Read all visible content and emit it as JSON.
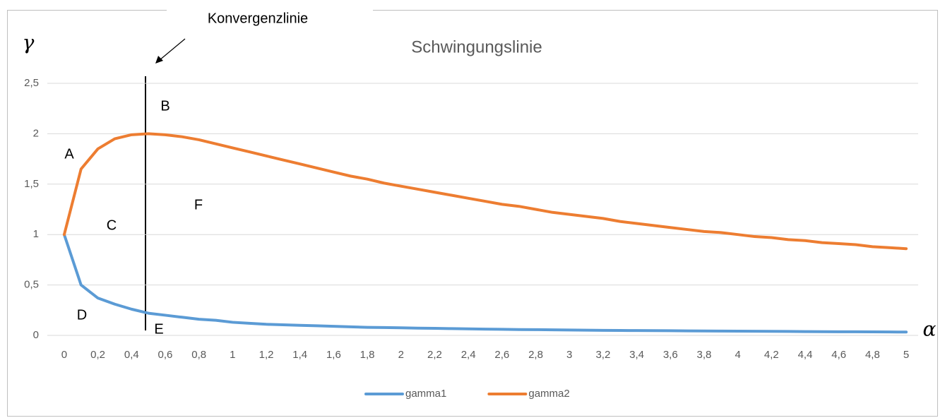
{
  "chart_data": {
    "type": "line",
    "title": "Schwingungslinie",
    "y_label": "γ",
    "x_label": "α",
    "annotations": [
      "Konvergenzlinie",
      "A",
      "B",
      "C",
      "D",
      "E",
      "F"
    ],
    "categories": [
      "0",
      null,
      "0,2",
      null,
      "0,4",
      null,
      "0,6",
      null,
      "0,8",
      null,
      "1",
      null,
      "1,2",
      null,
      "1,4",
      null,
      "1,6",
      null,
      "1,8",
      null,
      "2",
      null,
      "2,2",
      null,
      "2,4",
      null,
      "2,6",
      null,
      "2,8",
      null,
      "3",
      null,
      "3,2",
      null,
      "3,4",
      null,
      "3,6",
      null,
      "3,8",
      null,
      "4",
      null,
      "4,2",
      null,
      "4,4",
      null,
      "4,6",
      null,
      "4,8",
      null,
      "5"
    ],
    "series": [
      {
        "name": "gamma1",
        "color": "#5b9bd5",
        "values": [
          1,
          0.5,
          0.37,
          0.31,
          0.26,
          0.22,
          0.2,
          0.18,
          0.16,
          0.15,
          0.13,
          0.12,
          0.11,
          0.105,
          0.1,
          0.095,
          0.09,
          0.085,
          0.08,
          0.078,
          0.075,
          0.072,
          0.07,
          0.067,
          0.065,
          0.062,
          0.06,
          0.058,
          0.057,
          0.055,
          0.053,
          0.052,
          0.05,
          0.049,
          0.048,
          0.047,
          0.046,
          0.045,
          0.044,
          0.043,
          0.042,
          0.041,
          0.04,
          0.039,
          0.038,
          0.037,
          0.036,
          0.036,
          0.035,
          0.034,
          0.033
        ]
      },
      {
        "name": "gamma2",
        "color": "#ed7d31",
        "values": [
          1,
          1.65,
          1.85,
          1.95,
          1.99,
          2.0,
          1.99,
          1.97,
          1.94,
          1.9,
          1.86,
          1.82,
          1.78,
          1.74,
          1.7,
          1.66,
          1.62,
          1.58,
          1.55,
          1.51,
          1.48,
          1.45,
          1.42,
          1.39,
          1.36,
          1.33,
          1.3,
          1.28,
          1.25,
          1.22,
          1.2,
          1.18,
          1.16,
          1.13,
          1.11,
          1.09,
          1.07,
          1.05,
          1.03,
          1.02,
          1.0,
          0.98,
          0.97,
          0.95,
          0.94,
          0.92,
          0.91,
          0.9,
          0.88,
          0.87,
          0.86
        ]
      }
    ],
    "ylim": [
      0,
      2.5
    ],
    "yticks": [
      0,
      {
        "value": 0.5,
        "label": "0,5"
      },
      1,
      {
        "value": 1.5,
        "label": "1,5"
      },
      2,
      {
        "value": 2.5,
        "label": "2,5"
      }
    ],
    "grid": true,
    "legend": "bottom"
  }
}
